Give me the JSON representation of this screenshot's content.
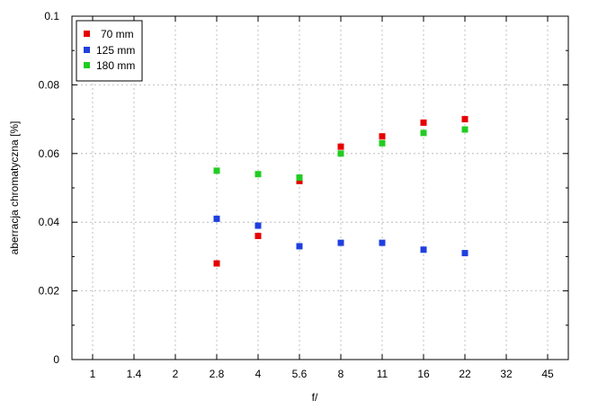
{
  "chart_data": {
    "type": "scatter",
    "title": "",
    "xlabel": "f/",
    "ylabel": "aberracja chromatyczna [%]",
    "x_ticks": [
      "1",
      "1.4",
      "2",
      "2.8",
      "4",
      "5.6",
      "8",
      "11",
      "16",
      "22",
      "32",
      "45"
    ],
    "ylim": [
      0,
      0.1
    ],
    "y_ticks": [
      "0",
      "0.02",
      "0.04",
      "0.06",
      "0.08",
      "0.1"
    ],
    "y_tick_values": [
      0,
      0.02,
      0.04,
      0.06,
      0.08,
      0.1
    ],
    "grid": true,
    "legend_position": "top-left",
    "series": [
      {
        "name": "70 mm",
        "color": "#e60000",
        "x": [
          "2.8",
          "4",
          "5.6",
          "8",
          "11",
          "16",
          "22"
        ],
        "y": [
          0.028,
          0.036,
          0.052,
          0.062,
          0.065,
          0.069,
          0.07
        ]
      },
      {
        "name": "125 mm",
        "color": "#1f3fdf",
        "x": [
          "2.8",
          "4",
          "5.6",
          "8",
          "11",
          "16",
          "22"
        ],
        "y": [
          0.041,
          0.039,
          0.033,
          0.034,
          0.034,
          0.032,
          0.031
        ]
      },
      {
        "name": "180 mm",
        "color": "#22cc22",
        "x": [
          "2.8",
          "4",
          "5.6",
          "8",
          "11",
          "16",
          "22"
        ],
        "y": [
          0.055,
          0.054,
          0.053,
          0.06,
          0.063,
          0.066,
          0.067
        ]
      }
    ]
  }
}
